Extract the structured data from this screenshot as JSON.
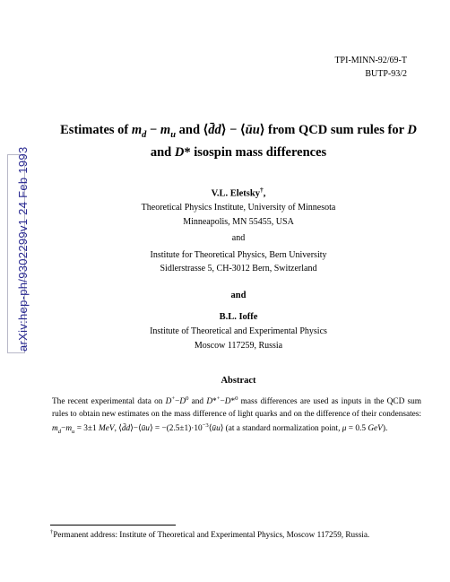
{
  "arxiv": "arXiv:hep-ph/9302299v1  24 Feb 1993",
  "ids": {
    "line1": "TPI-MINN-92/69-T",
    "line2": "BUTP-93/2"
  },
  "title_html": "Estimates of <span class='math-it'>m<sub>d</sub></span> − <span class='math-it'>m<sub>u</sub></span> and ⟨<span class='math-it'>d̄d</span>⟩ − ⟨<span class='math-it'>ūu</span>⟩ from QCD sum rules for <span class='math-it'>D</span> and <span class='math-it'>D</span>* isospin mass differences",
  "author1": {
    "name_html": "V.L. Eletsky<sup>†</sup>,",
    "affil1": "Theoretical Physics Institute, University of Minnesota",
    "affil1b": "Minneapolis, MN 55455, USA",
    "and": "and",
    "affil2": "Institute for Theoretical Physics, Bern University",
    "affil2b": "Sidlerstrasse 5, CH-3012 Bern, Switzerland"
  },
  "mid_and": "and",
  "author2": {
    "name": "B.L. Ioffe",
    "affil1": "Institute of Theoretical and Experimental Physics",
    "affil1b": "Moscow 117259, Russia"
  },
  "abstract_head": "Abstract",
  "abstract_html": "The recent experimental data on <span class='math-it'>D</span><sup>+</sup>−<span class='math-it'>D</span><sup>0</sup> and <span class='math-it'>D</span>*<sup>+</sup>−<span class='math-it'>D</span>*<sup>0</sup> mass differences are used as inputs in the QCD sum rules to obtain new estimates on the mass difference of light quarks and on the difference of their condensates: <span class='math-it'>m<sub>d</sub></span>−<span class='math-it'>m<sub>u</sub></span> = 3±1 <span class='math-it'>MeV</span>, ⟨<span class='math-it'>d̄d</span>⟩−⟨<span class='math-it'>ūu</span>⟩ = −(2.5±1)·10<sup>−3</sup>⟨<span class='math-it'>ūu</span>⟩ (at a standard normalization point, <span class='math-it'>μ</span> = 0.5 <span class='math-it'>GeV</span>).",
  "footnote_html": "<sup>†</sup>Permanent address: Institute of Theoretical and Experimental Physics, Moscow 117259, Russia."
}
